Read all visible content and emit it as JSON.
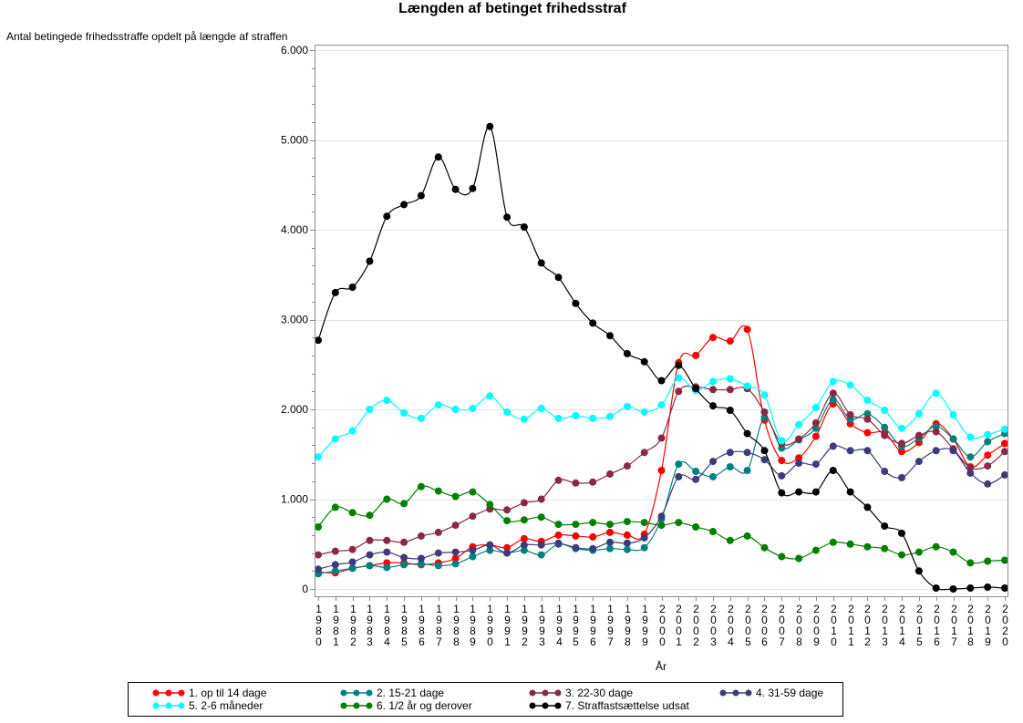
{
  "chart_data": {
    "type": "line",
    "title": "Længden af betinget frihedsstraf",
    "ylabel": "Antal betingede frihedsstraffe opdelt på længde af straffen",
    "xlabel": "År",
    "ylim": [
      0,
      6000
    ],
    "y_ticks": [
      0,
      1000,
      2000,
      3000,
      4000,
      5000,
      6000
    ],
    "y_tick_labels": [
      "0",
      "1.000",
      "2.000",
      "3.000",
      "4.000",
      "5.000",
      "6.000"
    ],
    "y_minor_step": 200,
    "grid": "horizontal",
    "legend_position": "bottom",
    "x": [
      1980,
      1981,
      1982,
      1983,
      1984,
      1985,
      1986,
      1987,
      1988,
      1989,
      1990,
      1991,
      1992,
      1993,
      1994,
      1995,
      1996,
      1997,
      1998,
      1999,
      2000,
      2001,
      2002,
      2003,
      2004,
      2005,
      2006,
      2007,
      2008,
      2009,
      2010,
      2011,
      2012,
      2013,
      2014,
      2015,
      2016,
      2017,
      2018,
      2019,
      2020
    ],
    "series": [
      {
        "name": "1. op til 14 dage",
        "color": "#ff0000",
        "values": [
          190,
          180,
          230,
          260,
          290,
          290,
          270,
          290,
          340,
          470,
          490,
          460,
          560,
          530,
          600,
          590,
          580,
          630,
          600,
          610,
          1320,
          2520,
          2600,
          2800,
          2760,
          2890,
          1880,
          1430,
          1460,
          1700,
          2060,
          1840,
          1740,
          1740,
          1530,
          1630,
          1840,
          1670,
          1360,
          1490,
          1620
        ]
      },
      {
        "name": "2. 15-21 dage",
        "color": "#008080",
        "values": [
          170,
          200,
          230,
          260,
          240,
          270,
          280,
          260,
          280,
          360,
          430,
          400,
          430,
          380,
          500,
          450,
          430,
          450,
          440,
          460,
          780,
          1390,
          1310,
          1250,
          1360,
          1320,
          1910,
          1570,
          1660,
          1790,
          2110,
          1890,
          1950,
          1800,
          1590,
          1680,
          1810,
          1670,
          1470,
          1640,
          1730
        ]
      },
      {
        "name": "3. 22-30 dage",
        "color": "#8b2942",
        "values": [
          380,
          420,
          440,
          540,
          540,
          520,
          590,
          630,
          710,
          810,
          890,
          880,
          960,
          1000,
          1210,
          1180,
          1190,
          1280,
          1370,
          1520,
          1680,
          2200,
          2250,
          2220,
          2220,
          2230,
          1970,
          1620,
          1670,
          1850,
          2180,
          1940,
          1890,
          1710,
          1620,
          1710,
          1750,
          1560,
          1350,
          1370,
          1530
        ]
      },
      {
        "name": "4. 31-59 dage",
        "color": "#3c3c7a",
        "values": [
          220,
          270,
          300,
          380,
          410,
          350,
          340,
          400,
          410,
          430,
          490,
          400,
          490,
          490,
          510,
          460,
          450,
          520,
          510,
          570,
          810,
          1250,
          1220,
          1420,
          1520,
          1520,
          1440,
          1260,
          1400,
          1390,
          1590,
          1540,
          1540,
          1310,
          1240,
          1420,
          1540,
          1540,
          1290,
          1170,
          1270
        ]
      },
      {
        "name": "5. 2-6 måneder",
        "color": "#00ffff",
        "values": [
          1470,
          1670,
          1760,
          2000,
          2100,
          1960,
          1900,
          2050,
          2000,
          2010,
          2150,
          1970,
          1890,
          2010,
          1900,
          1930,
          1900,
          1920,
          2030,
          1970,
          2050,
          2350,
          2210,
          2310,
          2340,
          2260,
          2160,
          1650,
          1830,
          2020,
          2310,
          2270,
          2100,
          1990,
          1790,
          1950,
          2180,
          1940,
          1690,
          1720,
          1780
        ]
      },
      {
        "name": "6. 1/2 år og derover",
        "color": "#008000",
        "values": [
          690,
          910,
          850,
          820,
          1000,
          950,
          1140,
          1090,
          1030,
          1080,
          940,
          760,
          770,
          800,
          720,
          720,
          740,
          720,
          750,
          740,
          710,
          740,
          690,
          640,
          540,
          590,
          460,
          360,
          340,
          430,
          520,
          500,
          470,
          450,
          380,
          410,
          470,
          410,
          290,
          310,
          320
        ]
      },
      {
        "name": "7. Straffastsættelse udsat",
        "color": "#000000",
        "values": [
          2770,
          3300,
          3360,
          3650,
          4150,
          4280,
          4380,
          4810,
          4450,
          4460,
          5150,
          4140,
          4030,
          3630,
          3470,
          3180,
          2960,
          2820,
          2620,
          2530,
          2320,
          2490,
          2230,
          2040,
          1990,
          1730,
          1540,
          1070,
          1080,
          1080,
          1320,
          1080,
          910,
          700,
          620,
          200,
          10,
          0,
          10,
          20,
          10
        ]
      }
    ]
  }
}
